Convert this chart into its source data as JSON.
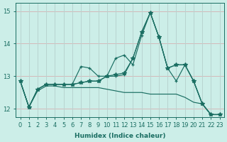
{
  "xlabel": "Humidex (Indice chaleur)",
  "bg_color": "#cceee8",
  "grid_color_h": "#d4b8b8",
  "grid_color_v": "#b8d4d0",
  "line_color": "#1a6e62",
  "xlim": [
    -0.5,
    23.5
  ],
  "ylim": [
    11.75,
    15.25
  ],
  "yticks": [
    12,
    13,
    14,
    15
  ],
  "xticks": [
    0,
    1,
    2,
    3,
    4,
    5,
    6,
    7,
    8,
    9,
    10,
    11,
    12,
    13,
    14,
    15,
    16,
    17,
    18,
    19,
    20,
    21,
    22,
    23
  ],
  "lines": [
    {
      "x": [
        0,
        1,
        2,
        3,
        4,
        5,
        6,
        7,
        8,
        9,
        10,
        11,
        12,
        13,
        14,
        15,
        16,
        17,
        18,
        19,
        20,
        21,
        22,
        23
      ],
      "y": [
        12.85,
        12.05,
        12.6,
        12.75,
        12.75,
        12.75,
        12.75,
        12.8,
        12.85,
        12.85,
        13.0,
        13.05,
        13.1,
        13.55,
        14.35,
        14.95,
        14.2,
        13.25,
        13.35,
        13.35,
        12.85,
        12.15,
        11.82,
        11.82
      ],
      "marker": "*",
      "markersize": 4
    },
    {
      "x": [
        0,
        1,
        2,
        3,
        4,
        5,
        6,
        7,
        8,
        9,
        10,
        11,
        12,
        13,
        14,
        15,
        16,
        17,
        18,
        19,
        20,
        21,
        22,
        23
      ],
      "y": [
        12.85,
        12.05,
        12.6,
        12.75,
        12.75,
        12.75,
        12.75,
        13.3,
        13.25,
        13.0,
        13.0,
        13.0,
        13.05,
        13.55,
        14.35,
        14.95,
        14.2,
        13.25,
        13.35,
        13.35,
        12.85,
        12.15,
        11.82,
        11.82
      ],
      "marker": "+",
      "markersize": 3
    },
    {
      "x": [
        0,
        1,
        2,
        3,
        4,
        5,
        6,
        7,
        8,
        9,
        10,
        11,
        12,
        13,
        14,
        15,
        16,
        17,
        18,
        19,
        20,
        21,
        22,
        23
      ],
      "y": [
        12.85,
        12.05,
        12.6,
        12.75,
        12.75,
        12.75,
        12.75,
        12.8,
        12.85,
        12.85,
        13.0,
        13.55,
        13.65,
        13.35,
        14.25,
        14.95,
        14.2,
        13.25,
        12.85,
        13.35,
        12.85,
        12.15,
        11.82,
        11.82
      ],
      "marker": "+",
      "markersize": 3
    },
    {
      "x": [
        0,
        1,
        2,
        3,
        4,
        5,
        6,
        7,
        8,
        9,
        10,
        11,
        12,
        13,
        14,
        15,
        16,
        17,
        18,
        19,
        20,
        21,
        22,
        23
      ],
      "y": [
        12.85,
        12.05,
        12.55,
        12.7,
        12.7,
        12.65,
        12.65,
        12.65,
        12.65,
        12.65,
        12.6,
        12.55,
        12.5,
        12.5,
        12.5,
        12.45,
        12.45,
        12.45,
        12.45,
        12.35,
        12.2,
        12.15,
        11.82,
        11.82
      ],
      "marker": null,
      "markersize": 0
    }
  ],
  "label_fontsize": 6.5,
  "tick_fontsize": 6.0
}
